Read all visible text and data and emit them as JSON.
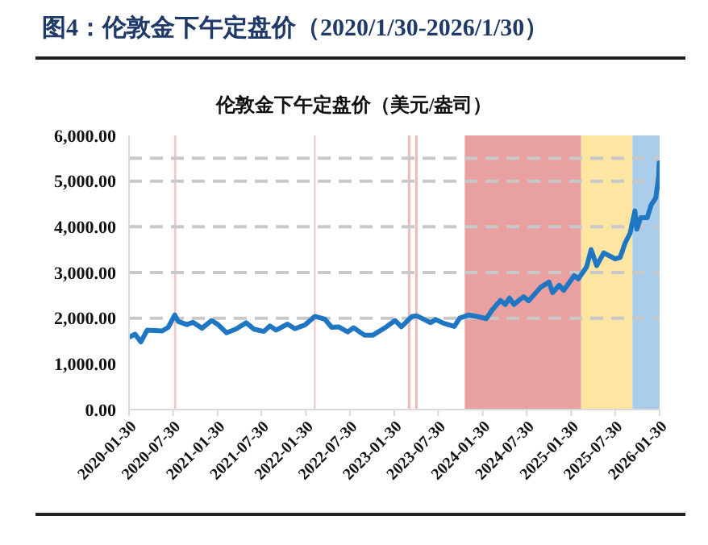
{
  "chart_data": {
    "type": "line",
    "title": "图4：伦敦金下午定盘价（2020/1/30-2026/1/30）",
    "subtitle": "伦敦金下午定盘价（美元/盎司）",
    "x": [
      "2020-01-30",
      "2020-02-24",
      "2020-03-19",
      "2020-04-14",
      "2020-05-18",
      "2020-06-15",
      "2020-07-10",
      "2020-08-06",
      "2020-08-20",
      "2020-09-25",
      "2020-10-20",
      "2020-11-27",
      "2021-01-05",
      "2021-02-01",
      "2021-03-08",
      "2021-04-15",
      "2021-05-28",
      "2021-06-29",
      "2021-08-09",
      "2021-09-03",
      "2021-09-29",
      "2021-11-15",
      "2021-12-15",
      "2022-01-25",
      "2022-03-08",
      "2022-04-18",
      "2022-05-16",
      "2022-06-14",
      "2022-07-21",
      "2022-08-15",
      "2022-09-28",
      "2022-11-03",
      "2022-12-28",
      "2023-02-02",
      "2023-02-28",
      "2023-04-13",
      "2023-05-04",
      "2023-06-29",
      "2023-07-20",
      "2023-08-21",
      "2023-10-05",
      "2023-10-27",
      "2023-12-04",
      "2024-01-15",
      "2024-02-14",
      "2024-03-08",
      "2024-04-12",
      "2024-05-03",
      "2024-05-20",
      "2024-06-07",
      "2024-07-17",
      "2024-08-07",
      "2024-09-26",
      "2024-10-30",
      "2024-11-14",
      "2024-12-11",
      "2024-12-30",
      "2025-02-11",
      "2025-02-28",
      "2025-04-03",
      "2025-04-22",
      "2025-05-15",
      "2025-06-13",
      "2025-07-30",
      "2025-08-20",
      "2025-09-09",
      "2025-09-30",
      "2025-10-20",
      "2025-10-28",
      "2025-11-13",
      "2025-12-10",
      "2025-12-26",
      "2026-01-14",
      "2026-01-26",
      "2026-01-28",
      "2026-01-30"
    ],
    "series": [
      {
        "color": "#1f77c4",
        "values": [
          1580,
          1650,
          1480,
          1740,
          1730,
          1720,
          1800,
          2070,
          1930,
          1860,
          1910,
          1780,
          1950,
          1860,
          1680,
          1760,
          1900,
          1760,
          1710,
          1830,
          1740,
          1870,
          1770,
          1850,
          2040,
          1980,
          1800,
          1810,
          1700,
          1790,
          1630,
          1630,
          1810,
          1950,
          1810,
          2040,
          2050,
          1900,
          1970,
          1890,
          1820,
          2000,
          2070,
          2030,
          1990,
          2170,
          2390,
          2300,
          2440,
          2300,
          2470,
          2380,
          2680,
          2790,
          2560,
          2720,
          2610,
          2930,
          2860,
          3120,
          3500,
          3150,
          3430,
          3300,
          3330,
          3640,
          3860,
          4350,
          3950,
          4200,
          4200,
          4480,
          4630,
          5100,
          5400,
          5300
        ]
      }
    ],
    "xlim": [
      "2020-01-30",
      "2026-01-30"
    ],
    "xticks": [
      "2020-01-30",
      "2020-07-30",
      "2021-01-30",
      "2021-07-30",
      "2022-01-30",
      "2022-07-30",
      "2023-01-30",
      "2023-07-30",
      "2024-01-30",
      "2024-07-30",
      "2025-01-30",
      "2025-07-30",
      "2026-01-30"
    ],
    "ylim": [
      0,
      6000
    ],
    "yticks": [
      {
        "value": 0,
        "label": "0.00"
      },
      {
        "value": 1000,
        "label": "1,000.00"
      },
      {
        "value": 2000,
        "label": "2,000.00"
      },
      {
        "value": 3000,
        "label": "3,000.00"
      },
      {
        "value": 4000,
        "label": "4,000.00"
      },
      {
        "value": 5000,
        "label": "5,000.00"
      },
      {
        "value": 6000,
        "label": "6,000.00"
      }
    ],
    "ref_lines": [
      {
        "axis": "y",
        "value": 2000,
        "color": "#c8c8c8",
        "line_style": "dashed"
      },
      {
        "axis": "y",
        "value": 3000,
        "color": "#c8c8c8",
        "line_style": "dashed"
      },
      {
        "axis": "y",
        "value": 4000,
        "color": "#c8c8c8",
        "line_style": "dashed"
      },
      {
        "axis": "y",
        "value": 5000,
        "color": "#c8c8c8",
        "line_style": "dashed"
      },
      {
        "axis": "y",
        "value": 5500,
        "color": "#c8c8c8",
        "line_style": "dashed"
      }
    ],
    "bands": [
      {
        "axis": "x",
        "from": "2020-08-03",
        "to": "2020-08-12",
        "color": "#f4c6c6"
      },
      {
        "axis": "x",
        "from": "2022-03-04",
        "to": "2022-03-11",
        "color": "#f4c6c6"
      },
      {
        "axis": "x",
        "from": "2023-03-27",
        "to": "2023-04-06",
        "color": "#f0b8b8"
      },
      {
        "axis": "x",
        "from": "2023-04-26",
        "to": "2023-05-06",
        "color": "#f0b8b8"
      },
      {
        "axis": "x",
        "from": "2023-11-17",
        "to": "2025-03-12",
        "color": "#e8a0a0"
      },
      {
        "axis": "x",
        "from": "2025-03-12",
        "to": "2025-10-10",
        "color": "#fde6a2"
      },
      {
        "axis": "x",
        "from": "2025-10-10",
        "to": "2026-01-30",
        "color": "#a9cdea"
      }
    ],
    "marker": "none",
    "line_style": "solid"
  }
}
